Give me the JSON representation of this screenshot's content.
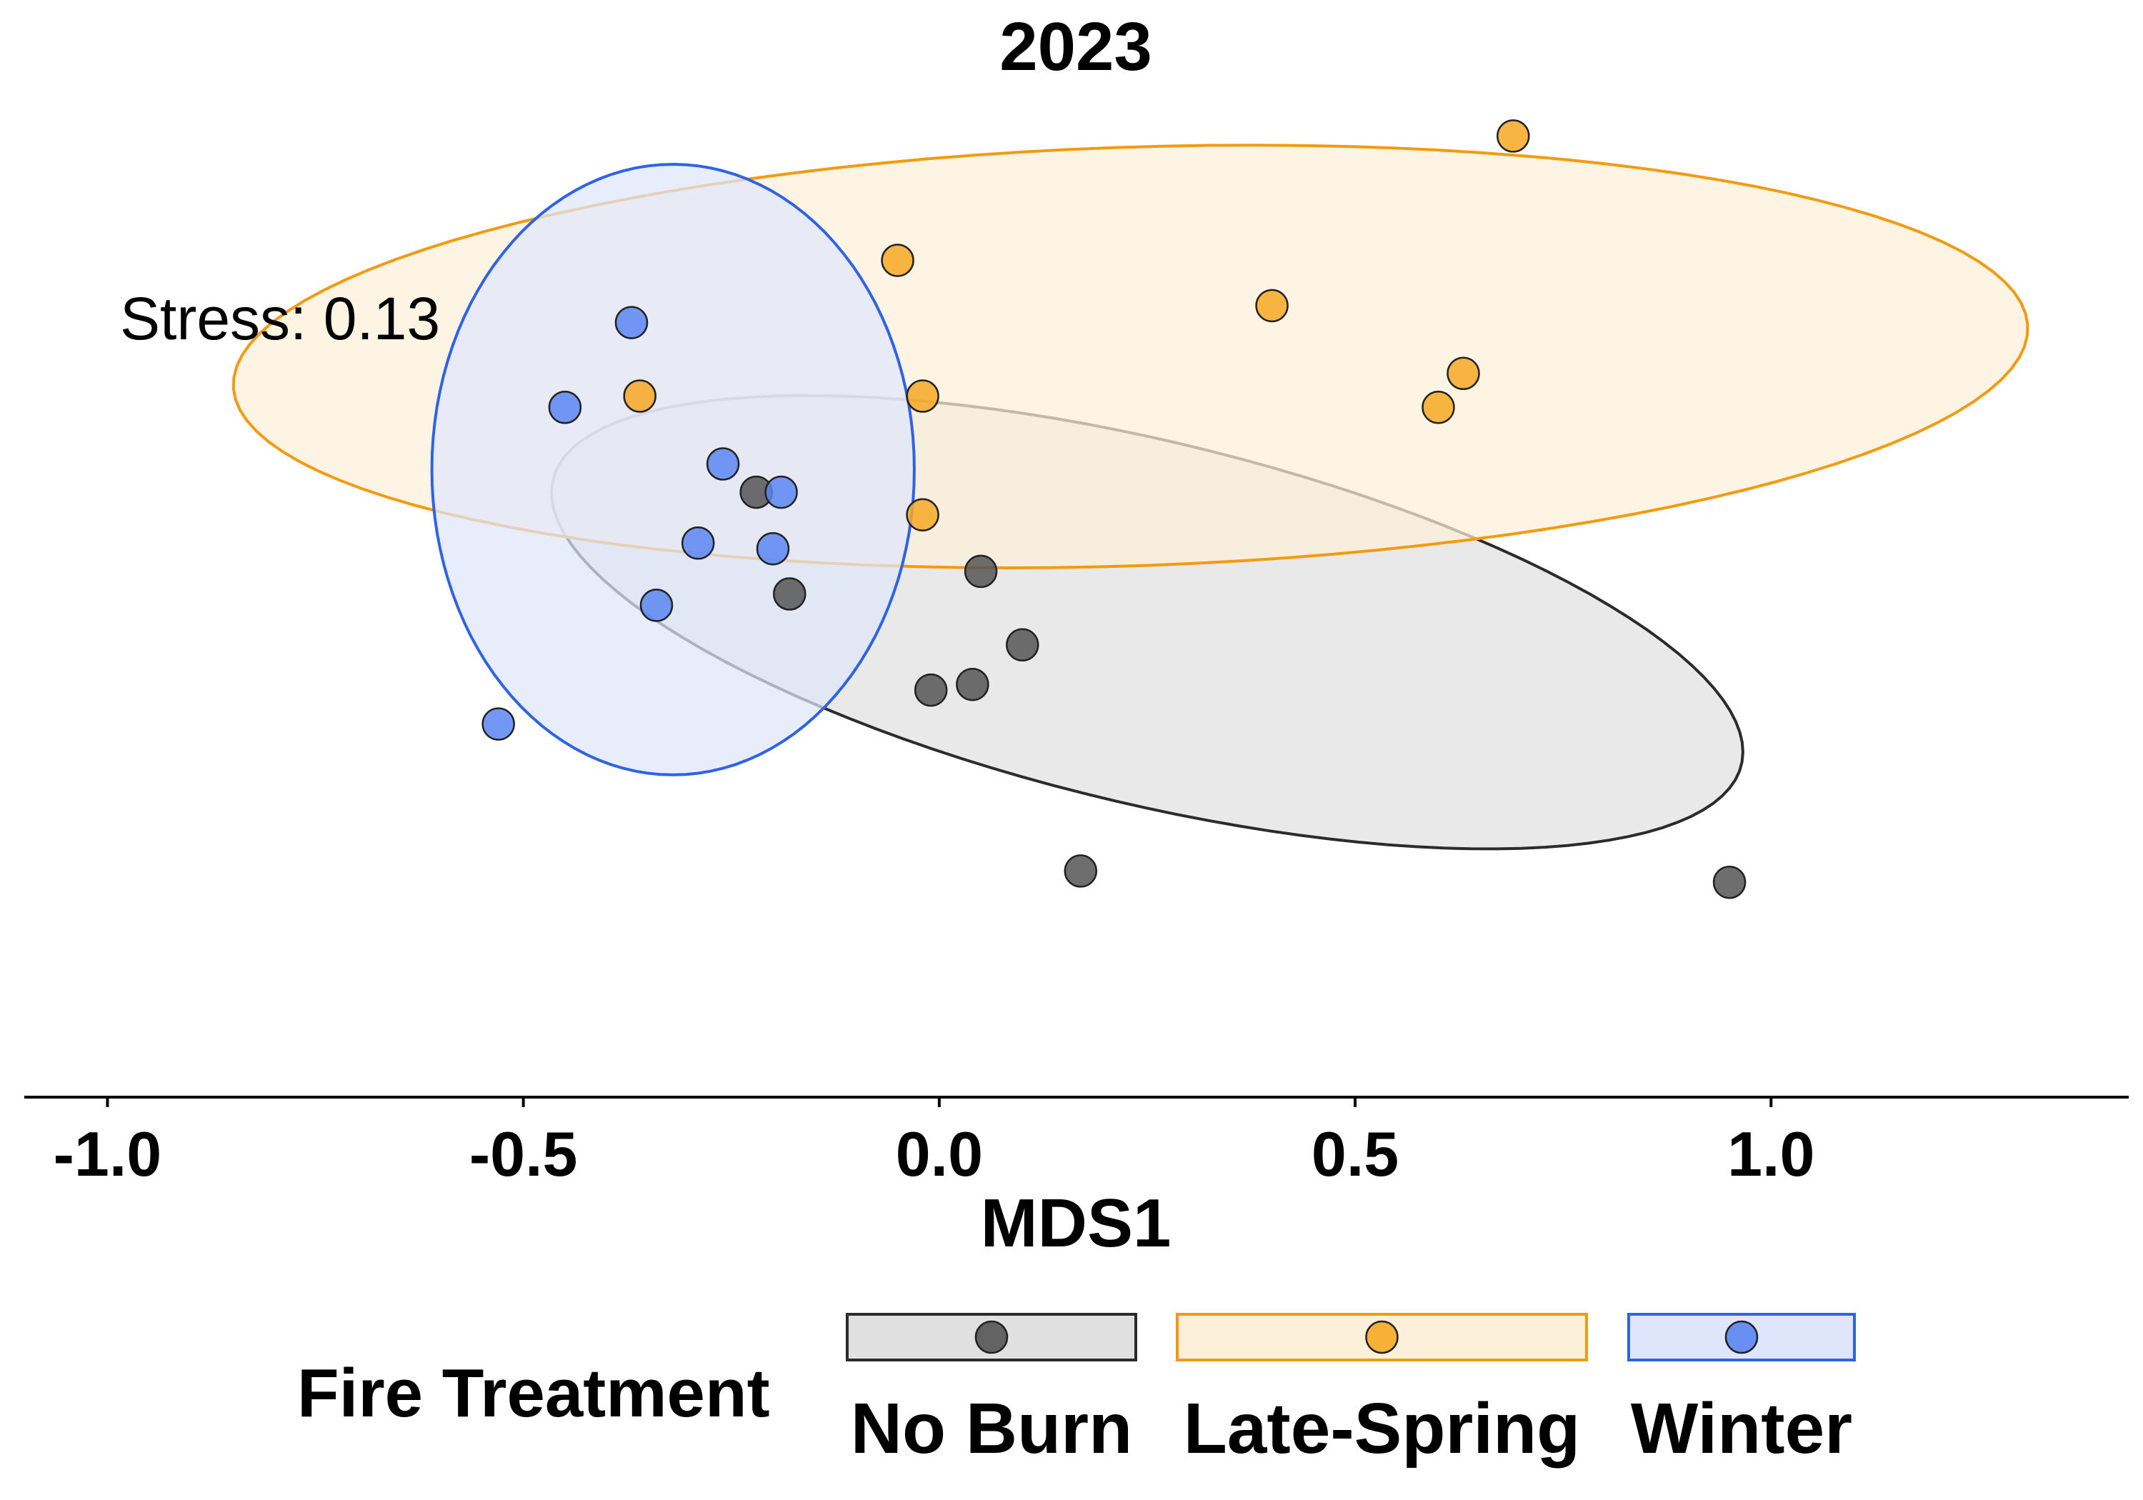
{
  "chart_data": {
    "type": "scatter",
    "title": "2023",
    "xlabel": "MDS1",
    "ylabel": "",
    "xlim": [
      -1.1,
      1.43
    ],
    "ylim": [
      -0.94,
      0.95
    ],
    "x_ticks": [
      -1.0,
      -0.5,
      0.0,
      0.5,
      1.0
    ],
    "x_tick_labels": [
      "-1.0",
      "-0.5",
      "0.0",
      "0.5",
      "1.0"
    ],
    "annotation": "Stress: 0.13",
    "legend": {
      "title": "Fire Treatment",
      "position": "bottom"
    },
    "series": [
      {
        "name": "No Burn",
        "color": "#555555",
        "ellipse_fill": "#e0e0e0",
        "ellipse_stroke": "#2b2b2b",
        "ellipse": {
          "cx": 0.25,
          "cy": -0.1,
          "rx": 0.76,
          "ry": 0.31,
          "angle_deg": -21.5
        },
        "points": [
          {
            "x": -0.22,
            "y": 0.13
          },
          {
            "x": -0.18,
            "y": -0.05
          },
          {
            "x": 0.05,
            "y": -0.01
          },
          {
            "x": 0.1,
            "y": -0.14
          },
          {
            "x": 0.04,
            "y": -0.21
          },
          {
            "x": -0.01,
            "y": -0.22
          },
          {
            "x": 0.17,
            "y": -0.54
          },
          {
            "x": 0.95,
            "y": -0.56
          }
        ]
      },
      {
        "name": "Late-Spring",
        "color": "#f7a823",
        "ellipse_fill": "#fdf0da",
        "ellipse_stroke": "#f29a10",
        "ellipse": {
          "cx": 0.23,
          "cy": 0.37,
          "rx": 1.08,
          "ry": 0.37,
          "angle_deg": 3
        },
        "points": [
          {
            "x": 0.69,
            "y": 0.76
          },
          {
            "x": -0.05,
            "y": 0.54
          },
          {
            "x": 0.4,
            "y": 0.46
          },
          {
            "x": 0.63,
            "y": 0.34
          },
          {
            "x": 0.6,
            "y": 0.28
          },
          {
            "x": -0.36,
            "y": 0.3
          },
          {
            "x": -0.02,
            "y": 0.3
          },
          {
            "x": -0.02,
            "y": 0.09
          }
        ]
      },
      {
        "name": "Winter",
        "color": "#5b86f2",
        "ellipse_fill": "#dfe6fb",
        "ellipse_stroke": "#2f63e6",
        "ellipse": {
          "cx": -0.32,
          "cy": 0.17,
          "rx": 0.29,
          "ry": 0.54,
          "angle_deg": 0
        },
        "points": [
          {
            "x": -0.37,
            "y": 0.43
          },
          {
            "x": -0.45,
            "y": 0.28
          },
          {
            "x": -0.26,
            "y": 0.18
          },
          {
            "x": -0.19,
            "y": 0.13
          },
          {
            "x": -0.29,
            "y": 0.04
          },
          {
            "x": -0.2,
            "y": 0.03
          },
          {
            "x": -0.34,
            "y": -0.07
          },
          {
            "x": -0.53,
            "y": -0.28
          }
        ]
      }
    ]
  }
}
